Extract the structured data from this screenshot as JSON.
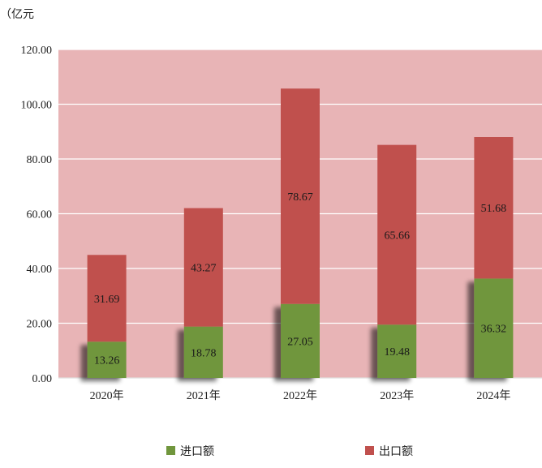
{
  "chart_data": {
    "type": "bar",
    "stacked": true,
    "unit_label": "（亿元",
    "categories": [
      "2020年",
      "2021年",
      "2022年",
      "2023年",
      "2024年"
    ],
    "series": [
      {
        "name": "进口额",
        "color": "#70963d",
        "values": [
          13.26,
          18.78,
          27.05,
          19.48,
          36.32
        ],
        "labels": [
          "13.26",
          "18.78",
          "27.05",
          "19.48",
          "36.32"
        ]
      },
      {
        "name": "出口额",
        "color": "#c0504d",
        "values": [
          31.69,
          43.27,
          78.67,
          65.66,
          51.68
        ],
        "labels": [
          "31.69",
          "43.27",
          "78.67",
          "65.66",
          "51.68"
        ]
      }
    ],
    "ylim": [
      0,
      120
    ],
    "yticks": [
      "0.00",
      "20.00",
      "40.00",
      "60.00",
      "80.00",
      "100.00",
      "120.00"
    ],
    "ytick_values": [
      0,
      20,
      40,
      60,
      80,
      100,
      120
    ],
    "grid": true,
    "plot_background": "#e8b4b6",
    "legend_position": "bottom"
  }
}
